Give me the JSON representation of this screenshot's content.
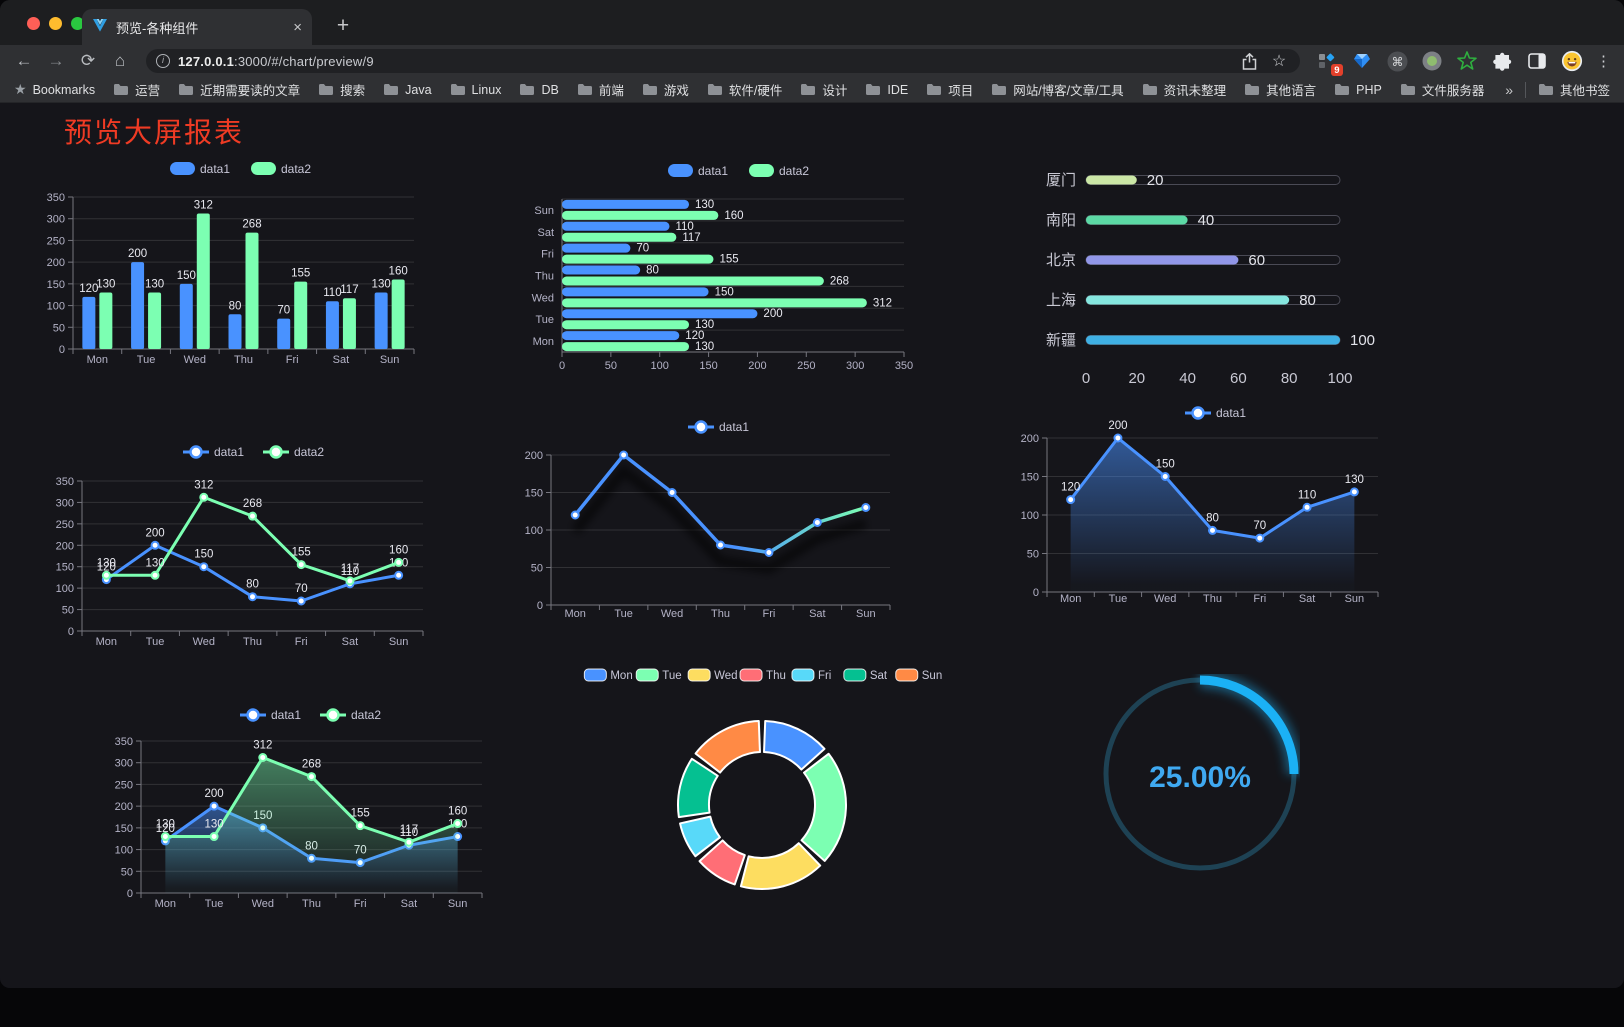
{
  "browser": {
    "tab": {
      "title": "预览-各种组件"
    },
    "url": {
      "host": "127.0.0.1",
      "rest": ":3000/#/chart/preview/9"
    },
    "extension_badge": "9",
    "new_tab_label": "+",
    "close_label": "×"
  },
  "bookmarks_bar": {
    "root_label": "Bookmarks",
    "folders": [
      "运营",
      "近期需要读的文章",
      "搜索",
      "Java",
      "Linux",
      "DB",
      "前端",
      "游戏",
      "软件/硬件",
      "设计",
      "IDE",
      "项目",
      "网站/博客/文章/工具",
      "资讯未整理",
      "其他语言",
      "PHP",
      "文件服务器"
    ],
    "overflow_chevron": "»",
    "other_bookmarks": "其他书签"
  },
  "page": {
    "title": "预览大屏报表"
  },
  "chart_data": [
    {
      "id": "grouped-bar",
      "type": "bar",
      "categories": [
        "Mon",
        "Tue",
        "Wed",
        "Thu",
        "Fri",
        "Sat",
        "Sun"
      ],
      "series": [
        {
          "name": "data1",
          "color": "#4992ff",
          "values": [
            120,
            200,
            150,
            80,
            70,
            110,
            130
          ]
        },
        {
          "name": "data2",
          "color": "#7cffb2",
          "values": [
            130,
            130,
            312,
            268,
            155,
            117,
            160
          ]
        }
      ],
      "ylim": [
        0,
        350
      ],
      "ytick": 50,
      "legend_position": "top",
      "grid": true
    },
    {
      "id": "horizontal-bar",
      "type": "bar",
      "orientation": "horizontal",
      "categories": [
        "Mon",
        "Tue",
        "Wed",
        "Thu",
        "Fri",
        "Sat",
        "Sun"
      ],
      "categories_display_top_to_bottom": [
        "Sun",
        "Sat",
        "Fri",
        "Thu",
        "Wed",
        "Tue",
        "Mon"
      ],
      "series": [
        {
          "name": "data1",
          "color": "#4992ff",
          "values": [
            120,
            200,
            150,
            80,
            70,
            110,
            130
          ]
        },
        {
          "name": "data2",
          "color": "#7cffb2",
          "values": [
            130,
            130,
            312,
            268,
            155,
            117,
            160
          ]
        }
      ],
      "xlim": [
        0,
        350
      ],
      "xtick": 50,
      "legend_position": "top",
      "grid": true
    },
    {
      "id": "progress-bars",
      "type": "bar",
      "orientation": "horizontal",
      "items": [
        {
          "label": "厦门",
          "value": 20,
          "color": "#cbe7a6"
        },
        {
          "label": "南阳",
          "value": 40,
          "color": "#5cd9a5"
        },
        {
          "label": "北京",
          "value": 60,
          "color": "#9196e8"
        },
        {
          "label": "上海",
          "value": 80,
          "color": "#85e6df"
        },
        {
          "label": "新疆",
          "value": 100,
          "color": "#3fb0e4"
        }
      ],
      "xlim": [
        0,
        100
      ],
      "ticks": [
        0,
        20,
        40,
        60,
        80,
        100
      ]
    },
    {
      "id": "line-two-series",
      "type": "line",
      "categories": [
        "Mon",
        "Tue",
        "Wed",
        "Thu",
        "Fri",
        "Sat",
        "Sun"
      ],
      "series": [
        {
          "name": "data1",
          "color": "#4992ff",
          "values": [
            120,
            200,
            150,
            80,
            70,
            110,
            130
          ]
        },
        {
          "name": "data2",
          "color": "#7cffb2",
          "values": [
            130,
            130,
            312,
            268,
            155,
            117,
            160
          ]
        }
      ],
      "ylim": [
        0,
        350
      ],
      "ytick": 50,
      "point_labels": true,
      "legend_position": "top"
    },
    {
      "id": "line-gradient",
      "type": "line",
      "categories": [
        "Mon",
        "Tue",
        "Wed",
        "Thu",
        "Fri",
        "Sat",
        "Sun"
      ],
      "series": [
        {
          "name": "data1",
          "color": "#4992ff",
          "values": [
            120,
            200,
            150,
            80,
            70,
            110,
            130
          ]
        }
      ],
      "gradient": [
        "#4992ff",
        "#7cffb2"
      ],
      "ylim": [
        0,
        200
      ],
      "ytick": 50,
      "point_labels": false,
      "shadow": true,
      "legend_position": "top"
    },
    {
      "id": "area-single",
      "type": "area",
      "categories": [
        "Mon",
        "Tue",
        "Wed",
        "Thu",
        "Fri",
        "Sat",
        "Sun"
      ],
      "series": [
        {
          "name": "data1",
          "color": "#4992ff",
          "values": [
            120,
            200,
            150,
            80,
            70,
            110,
            130
          ]
        }
      ],
      "ylim": [
        0,
        200
      ],
      "ytick": 50,
      "point_labels": true,
      "legend_position": "top"
    },
    {
      "id": "area-two-series",
      "type": "area",
      "categories": [
        "Mon",
        "Tue",
        "Wed",
        "Thu",
        "Fri",
        "Sat",
        "Sun"
      ],
      "series": [
        {
          "name": "data1",
          "color": "#4992ff",
          "values": [
            120,
            200,
            150,
            80,
            70,
            110,
            130
          ]
        },
        {
          "name": "data2",
          "color": "#7cffb2",
          "values": [
            130,
            130,
            312,
            268,
            155,
            117,
            160
          ]
        }
      ],
      "ylim": [
        0,
        350
      ],
      "ytick": 50,
      "point_labels": true,
      "legend_position": "top"
    },
    {
      "id": "donut",
      "type": "pie",
      "labels": [
        "Mon",
        "Tue",
        "Wed",
        "Thu",
        "Fri",
        "Sat",
        "Sun"
      ],
      "values": [
        120,
        200,
        150,
        80,
        70,
        110,
        130
      ],
      "colors": [
        "#4992ff",
        "#7cffb2",
        "#fddd60",
        "#ff6e76",
        "#58d9f9",
        "#05c091",
        "#ff8a45"
      ],
      "inner_radius_ratio": 0.63,
      "legend_position": "top"
    },
    {
      "id": "gauge",
      "type": "gauge",
      "value": 25,
      "display": "25.00%",
      "color": "#1bb1f5",
      "track": "#1e4254",
      "text_color": "#3fa9f1"
    }
  ]
}
